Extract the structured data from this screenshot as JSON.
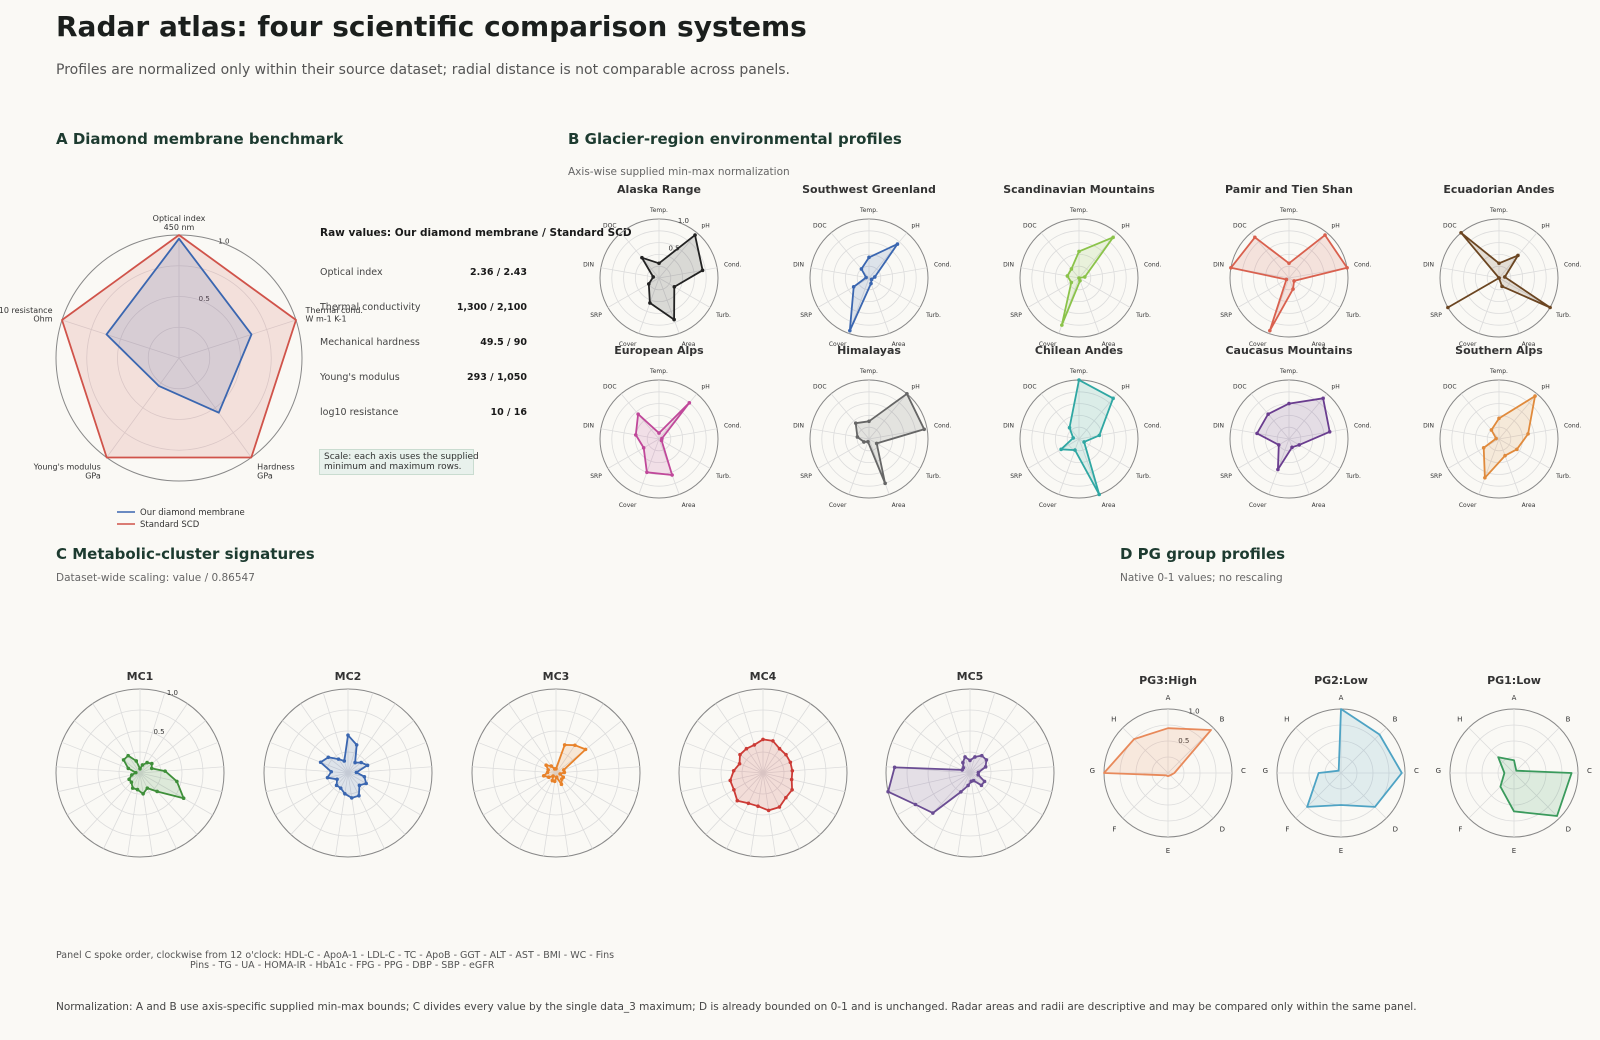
{
  "header": {
    "title": "Radar atlas: four scientific comparison systems",
    "subtitle": "Profiles are normalized only within their source dataset; radial distance is not comparable across panels."
  },
  "panels": {
    "a": {
      "title": "A  Diamond membrane benchmark",
      "raw_title": "Raw values: Our diamond membrane / Standard SCD",
      "raw_rows": [
        {
          "label": "Optical index",
          "value": "2.36 / 2.43"
        },
        {
          "label": "Thermal conductivity",
          "value": "1,300 / 2,100"
        },
        {
          "label": "Mechanical hardness",
          "value": "49.5 / 90"
        },
        {
          "label": "Young's modulus",
          "value": "293 / 1,050"
        },
        {
          "label": "log10 resistance",
          "value": "10 / 16"
        }
      ],
      "scale_line1": "Scale: each axis uses the supplied",
      "scale_line2": "minimum and maximum rows."
    },
    "b": {
      "title": "B  Glacier-region environmental profiles",
      "note": "Axis-wise supplied min-max normalization"
    },
    "c": {
      "title": "C  Metabolic-cluster signatures",
      "note": "Dataset-wide scaling: value / 0.86547",
      "footnote1": "Panel C spoke order, clockwise from 12 o'clock: HDL-C - ApoA-1 - LDL-C - TC - ApoB - GGT - ALT - AST - BMI - WC - Fins",
      "footnote2": "Pins - TG - UA - HOMA-IR - HbA1c - FPG - PPG - DBP - SBP - eGFR"
    },
    "d": {
      "title": "D  PG group profiles",
      "note": "Native 0-1 values; no rescaling"
    }
  },
  "footer": {
    "text": "Normalization: A and B use axis-specific supplied min-max bounds; C divides every value by the single data_3 maximum; D is already bounded on 0-1 and is unchanged. Radar areas and radii are descriptive and may be compared only within the same panel."
  },
  "chart_data": [
    {
      "id": "A",
      "type": "radar",
      "axes": [
        "Optical index\n450 nm",
        "Thermal cond.\nW m-1 K-1",
        "Hardness\nGPa",
        "Young's modulus\nGPa",
        "log10 resistance\nOhm"
      ],
      "rlim": [
        0,
        1
      ],
      "ticks": [
        0.5,
        1.0
      ],
      "series": [
        {
          "name": "Our diamond membrane",
          "color": "#3a66b0",
          "values": [
            0.97,
            0.62,
            0.55,
            0.28,
            0.62
          ]
        },
        {
          "name": "Standard SCD",
          "color": "#d0534a",
          "values": [
            1.0,
            1.0,
            1.0,
            1.0,
            1.0
          ]
        }
      ]
    },
    {
      "id": "B",
      "type": "radar",
      "rlim": [
        0,
        1
      ],
      "ticks": [
        0.5,
        1.0
      ],
      "axes": [
        "Temp.",
        "pH",
        "Cond.",
        "Turb.",
        "Area",
        "Cover",
        "SRP",
        "DIN",
        "DOC"
      ],
      "series": [
        {
          "name": "Alaska Range",
          "color": "#222222",
          "values": [
            0.25,
            0.95,
            0.75,
            0.3,
            0.75,
            0.45,
            0.2,
            0.1,
            0.45
          ]
        },
        {
          "name": "Southwest Greenland",
          "color": "#3a66b0",
          "values": [
            0.35,
            0.75,
            0.1,
            0.05,
            0.1,
            0.95,
            0.3,
            0.05,
            0.2
          ]
        },
        {
          "name": "Scandinavian Mountains",
          "color": "#8bc34a",
          "values": [
            0.45,
            0.9,
            0.1,
            0.0,
            0.05,
            0.85,
            0.15,
            0.2,
            0.2
          ]
        },
        {
          "name": "Pamir and Tien Shan",
          "color": "#d9604e",
          "values": [
            0.25,
            0.95,
            1.0,
            0.1,
            0.2,
            0.95,
            0.05,
            1.0,
            0.9
          ]
        },
        {
          "name": "Ecuadorian Andes",
          "color": "#6b4521",
          "values": [
            0.25,
            0.5,
            0.1,
            1.0,
            0.15,
            0.0,
            1.0,
            0.0,
            1.0
          ]
        },
        {
          "name": "European Alps",
          "color": "#c0489a",
          "values": [
            0.1,
            0.8,
            0.05,
            0.05,
            0.65,
            0.6,
            0.3,
            0.4,
            0.55
          ]
        },
        {
          "name": "Himalayas",
          "color": "#666666",
          "values": [
            0.3,
            1.0,
            0.95,
            0.15,
            0.8,
            0.05,
            0.1,
            0.2,
            0.35
          ]
        },
        {
          "name": "Chilean Andes",
          "color": "#2fa7a3",
          "values": [
            1.0,
            0.9,
            0.35,
            0.1,
            1.0,
            0.2,
            0.35,
            0.1,
            0.25
          ]
        },
        {
          "name": "Caucasus Mountains",
          "color": "#6a3d8f",
          "values": [
            0.6,
            0.9,
            0.7,
            0.2,
            0.15,
            0.55,
            0.2,
            0.55,
            0.55
          ]
        },
        {
          "name": "Southern Alps",
          "color": "#e08a3c",
          "values": [
            0.35,
            0.95,
            0.5,
            0.35,
            0.3,
            0.7,
            0.3,
            0.05,
            0.2
          ]
        }
      ]
    },
    {
      "id": "C",
      "type": "radar",
      "rlim": [
        0,
        1
      ],
      "ticks": [
        0.5,
        1.0
      ],
      "spokes": 21,
      "series": [
        {
          "name": "MC1",
          "color": "#3f8f3a",
          "values": [
            0.05,
            0.1,
            0.15,
            0.18,
            0.15,
            0.3,
            0.45,
            0.6,
            0.3,
            0.2,
            0.25,
            0.2,
            0.2,
            0.15,
            0.15,
            0.1,
            0.05,
            0.15,
            0.25,
            0.25,
            0.15
          ]
        },
        {
          "name": "MC2",
          "color": "#3a66b0",
          "values": [
            0.45,
            0.35,
            0.15,
            0.2,
            0.25,
            0.1,
            0.2,
            0.25,
            0.2,
            0.3,
            0.3,
            0.25,
            0.2,
            0.2,
            0.15,
            0.25,
            0.2,
            0.35,
            0.3,
            0.2,
            0.15
          ]
        },
        {
          "name": "MC3",
          "color": "#e8822a",
          "values": [
            0.05,
            0.35,
            0.4,
            0.45,
            0.1,
            0.1,
            0.05,
            0.1,
            0.1,
            0.15,
            0.05,
            0.1,
            0.1,
            0.05,
            0.1,
            0.15,
            0.1,
            0.1,
            0.15,
            0.1,
            0.05
          ]
        },
        {
          "name": "MC4",
          "color": "#cc3b36",
          "values": [
            0.4,
            0.4,
            0.35,
            0.35,
            0.35,
            0.35,
            0.35,
            0.4,
            0.4,
            0.45,
            0.45,
            0.4,
            0.4,
            0.45,
            0.4,
            0.4,
            0.35,
            0.3,
            0.35,
            0.35,
            0.35
          ]
        },
        {
          "name": "MC5",
          "color": "#6a4c93",
          "values": [
            0.15,
            0.2,
            0.25,
            0.25,
            0.2,
            0.1,
            0.1,
            0.2,
            0.2,
            0.1,
            0.1,
            0.15,
            0.25,
            0.65,
            0.75,
            1.0,
            0.9,
            0.1,
            0.1,
            0.15,
            0.2
          ]
        }
      ]
    },
    {
      "id": "D",
      "type": "radar",
      "rlim": [
        0,
        1
      ],
      "ticks": [
        0.5,
        1.0
      ],
      "axes": [
        "A",
        "B",
        "C",
        "D",
        "E",
        "F",
        "G",
        "H"
      ],
      "series": [
        {
          "name": "PG3:High",
          "color": "#e8895a",
          "values": [
            0.7,
            0.95,
            0.1,
            0.05,
            0.05,
            0.05,
            1.0,
            0.75
          ]
        },
        {
          "name": "PG2:Low",
          "color": "#4ea3c4",
          "values": [
            1.0,
            0.85,
            0.95,
            0.75,
            0.5,
            0.75,
            0.35,
            0.05
          ]
        },
        {
          "name": "PG1:Low",
          "color": "#3a9a5c",
          "values": [
            0.2,
            0.05,
            0.9,
            0.95,
            0.6,
            0.3,
            0.15,
            0.35
          ]
        }
      ]
    }
  ]
}
